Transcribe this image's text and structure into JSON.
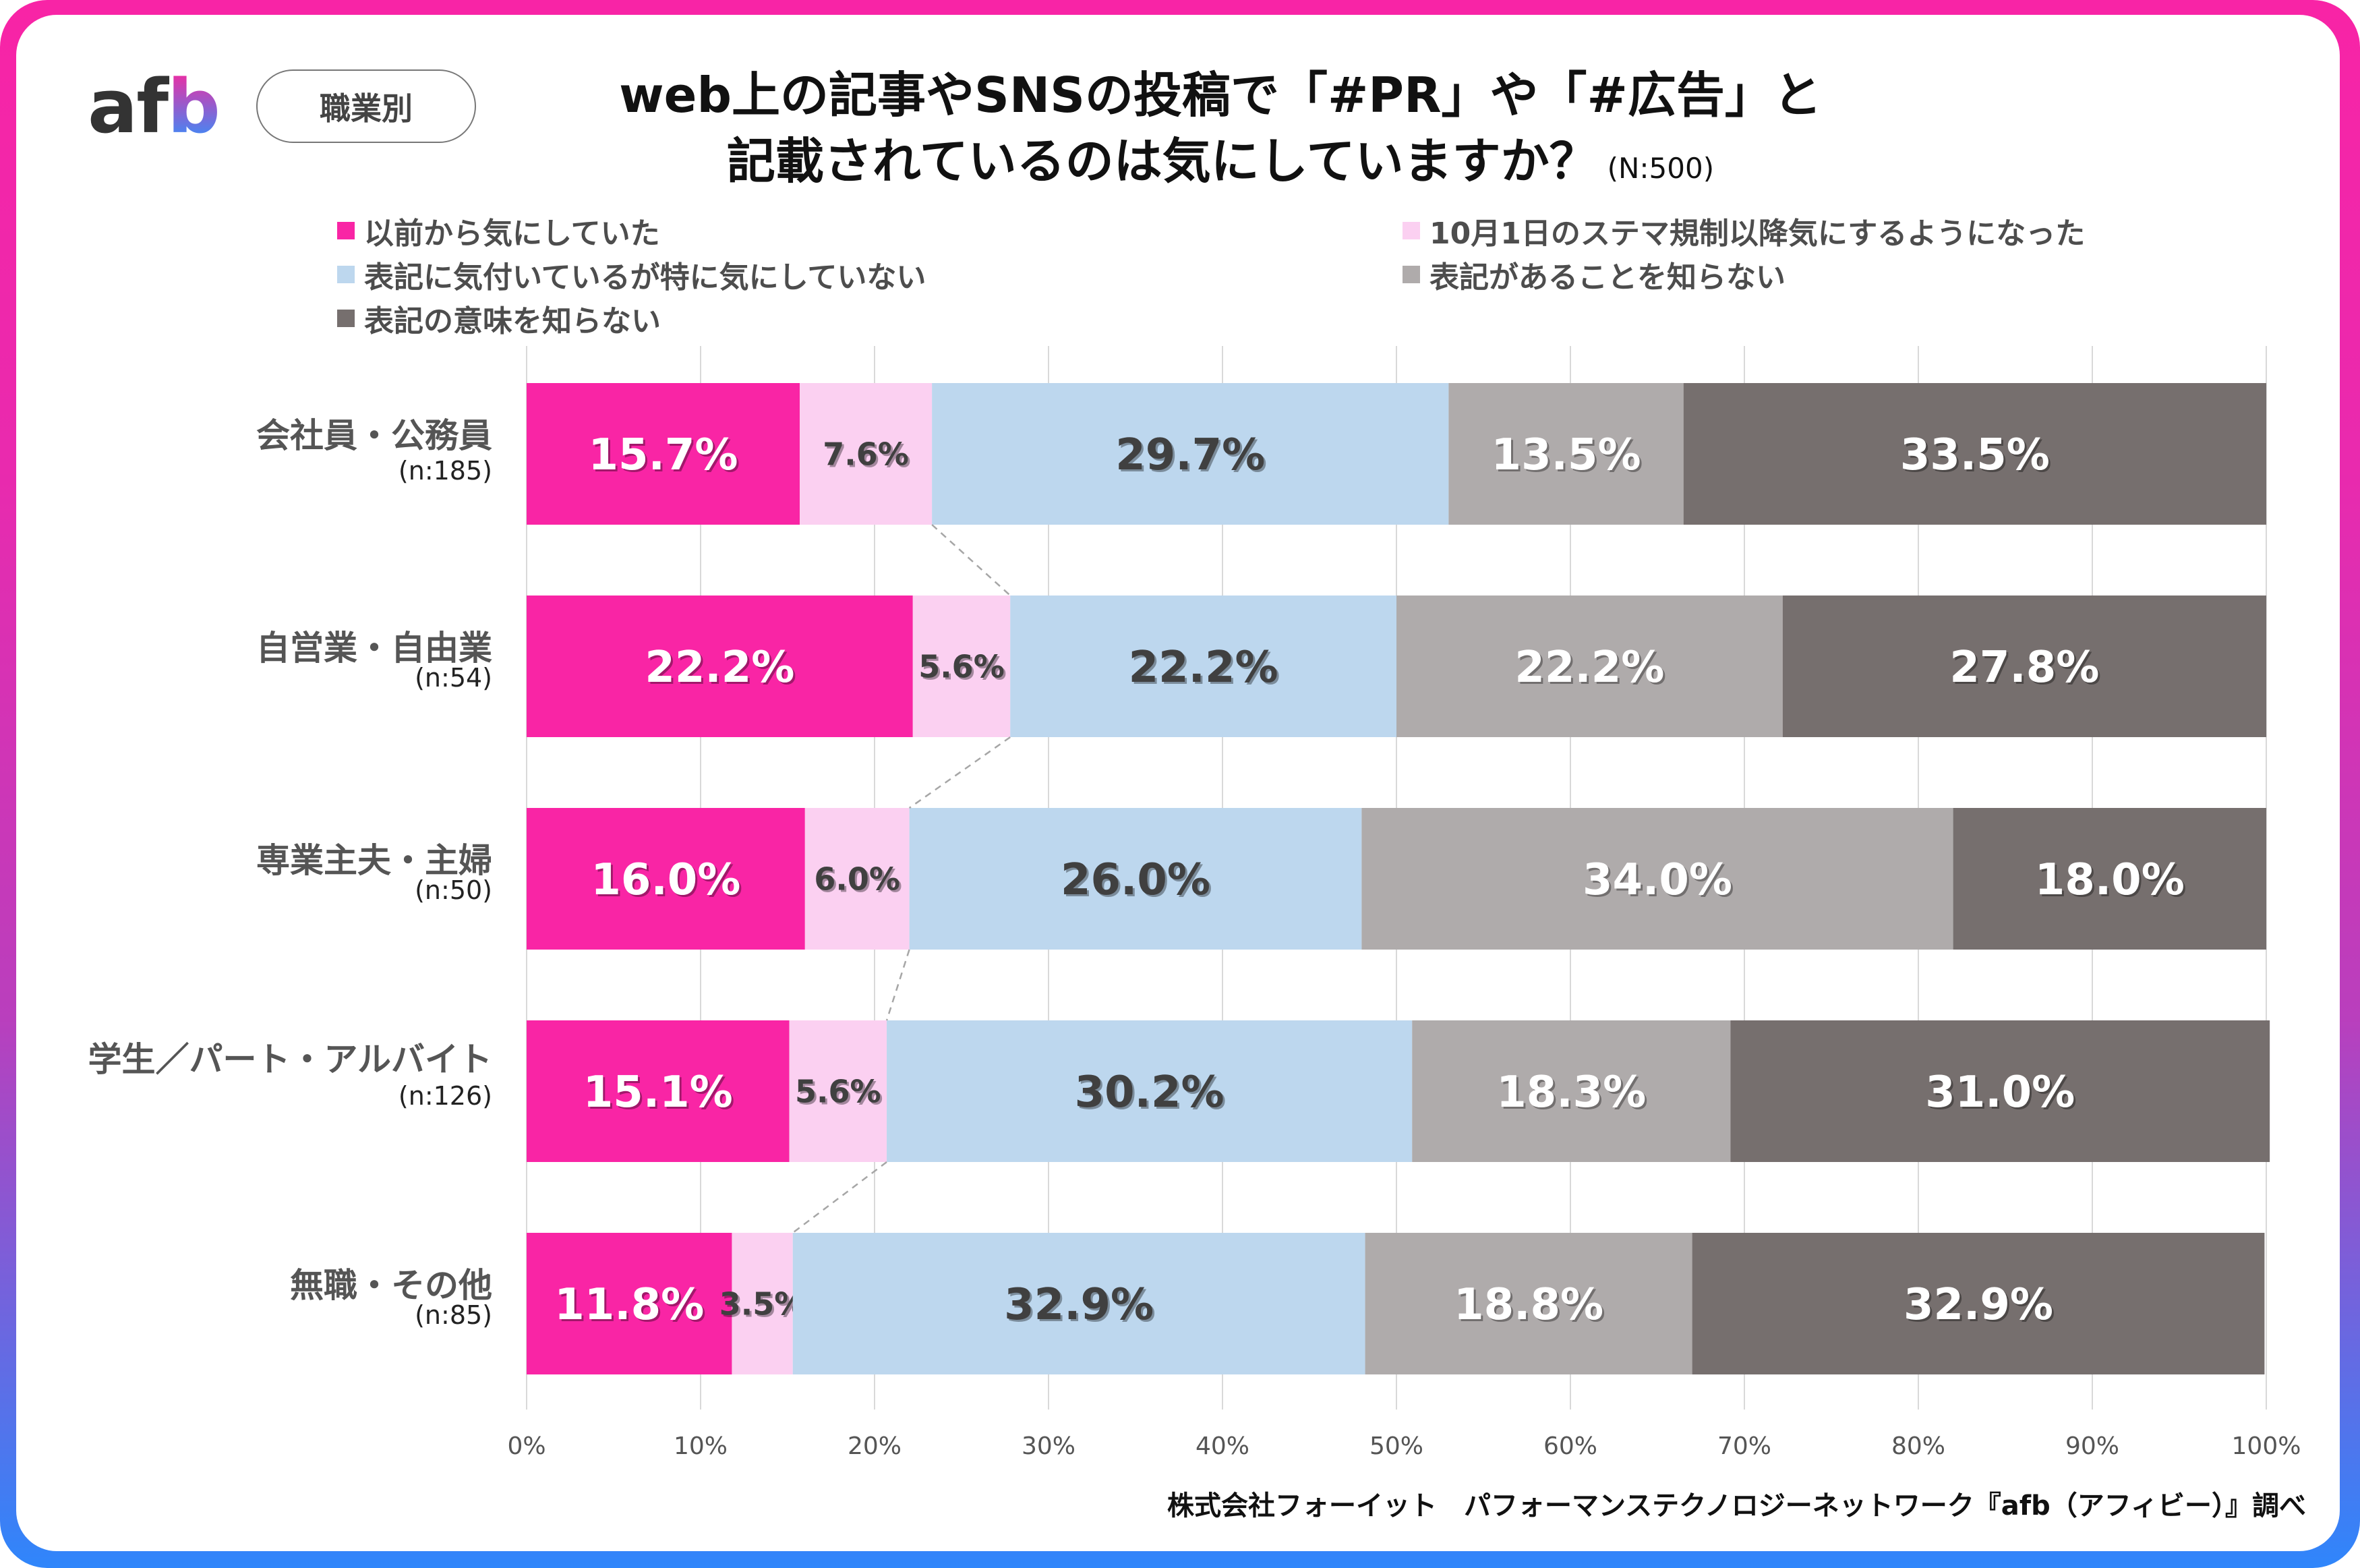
{
  "header": {
    "logo_text_af": "af",
    "logo_text_b": "b",
    "category_pill": "職業別",
    "title_line1": "web上の記事やSNSの投稿で「#PR」や「#広告」と",
    "title_line2": "記載されているのは気にしていますか？",
    "sample_size": "(N:500)"
  },
  "footer": {
    "credit": "株式会社フォーイット　パフォーマンステクノロジーネットワーク『afb（アフィビー）』調べ"
  },
  "chart_data": {
    "type": "bar",
    "orientation": "horizontal",
    "stacked": "100%",
    "title": "web上の記事やSNSの投稿で「#PR」や「#広告」と記載されているのは気にしていますか？ (N:500)",
    "xlabel": "",
    "ylabel": "",
    "xlim": [
      0,
      100
    ],
    "x_ticks": [
      "0%",
      "10%",
      "20%",
      "30%",
      "40%",
      "50%",
      "60%",
      "70%",
      "80%",
      "90%",
      "100%"
    ],
    "grid": true,
    "legend_position": "top",
    "categories": [
      "会社員・公務員",
      "自営業・自由業",
      "専業主夫・主婦",
      "学生／パート・アルバイト",
      "無職・その他"
    ],
    "category_n": [
      "(n:185)",
      "(n:54)",
      "(n:50)",
      "(n:126)",
      "(n:85)"
    ],
    "series": [
      {
        "name": "以前から気にしていた",
        "color": "#f925a5",
        "label_color": "#ffffff",
        "values": [
          15.7,
          22.2,
          16.0,
          15.1,
          11.8
        ]
      },
      {
        "name": "10月1日のステマ規制以降気にするようになった",
        "color": "#fbd0f1",
        "label_color": "#404040",
        "values": [
          7.6,
          5.6,
          6.0,
          5.6,
          3.5
        ]
      },
      {
        "name": "表記に気付いているが特に気にしていない",
        "color": "#bdd7ee",
        "label_color": "#404040",
        "values": [
          29.7,
          22.2,
          26.0,
          30.2,
          32.9
        ]
      },
      {
        "name": "表記があることを知らない",
        "color": "#afabab",
        "label_color": "#ffffff",
        "values": [
          13.5,
          22.2,
          34.0,
          18.3,
          18.8
        ]
      },
      {
        "name": "表記の意味を知らない",
        "color": "#766f6e",
        "label_color": "#ffffff",
        "values": [
          33.5,
          27.8,
          18.0,
          31.0,
          32.9
        ]
      }
    ],
    "value_suffix": "%"
  }
}
